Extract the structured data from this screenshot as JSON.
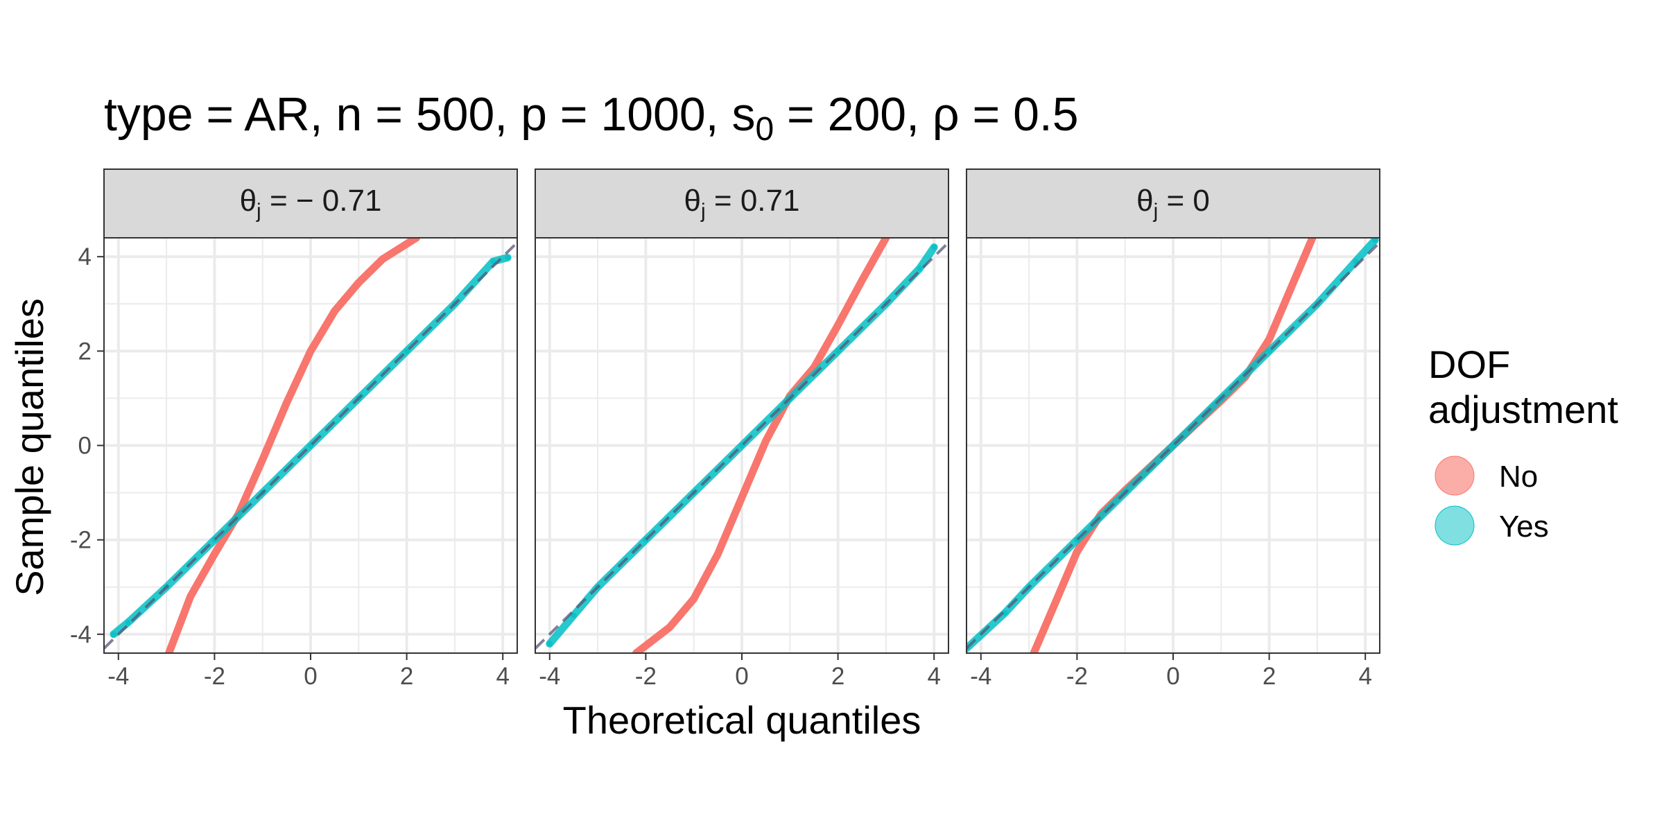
{
  "title": {
    "prefix": "type = AR, n = 500, p = 1000, s",
    "sub": "0",
    "suffix": " = 200, ρ = 0.5"
  },
  "colors": {
    "no": "#F8766D",
    "yes": "#00BFC4",
    "reference": "#555577",
    "strip": "#D9D9D9",
    "grid": "#EBEBEB"
  },
  "chart_data": {
    "type": "scatter",
    "xlabel": "Theoretical quantiles",
    "ylabel": "Sample quantiles",
    "xlim": [
      -4.3,
      4.3
    ],
    "ylim": [
      -4.4,
      4.4
    ],
    "xticks": [
      "-4",
      "-2",
      "0",
      "2",
      "4"
    ],
    "yticks": [
      "4",
      "2",
      "0",
      "-2",
      "-4"
    ],
    "legend": {
      "title_line1": "DOF",
      "title_line2": "adjustment",
      "position": "right",
      "entries": [
        "No",
        "Yes"
      ]
    },
    "reference_line": "y = x (dashed)",
    "panels": [
      {
        "label_theta": "θ",
        "label_sub": "j",
        "label_rest": " = − 0.71",
        "series": [
          {
            "name": "No",
            "points": [
              [
                -2.95,
                -4.4
              ],
              [
                -2.5,
                -3.2
              ],
              [
                -2.0,
                -2.3
              ],
              [
                -1.5,
                -1.45
              ],
              [
                -1.0,
                -0.3
              ],
              [
                -0.5,
                0.9
              ],
              [
                0.0,
                2.0
              ],
              [
                0.5,
                2.85
              ],
              [
                1.0,
                3.45
              ],
              [
                1.5,
                3.95
              ],
              [
                2.2,
                4.4
              ]
            ]
          },
          {
            "name": "Yes",
            "points": [
              [
                -4.1,
                -4.0
              ],
              [
                -3.8,
                -3.75
              ],
              [
                -3.0,
                -3.0
              ],
              [
                -2.0,
                -2.0
              ],
              [
                -1.0,
                -1.0
              ],
              [
                0.0,
                0.0
              ],
              [
                1.0,
                1.0
              ],
              [
                2.0,
                2.0
              ],
              [
                3.0,
                3.0
              ],
              [
                3.8,
                3.9
              ],
              [
                4.1,
                3.98
              ]
            ]
          }
        ]
      },
      {
        "label_theta": "θ",
        "label_sub": "j",
        "label_rest": " = 0.71",
        "series": [
          {
            "name": "No",
            "points": [
              [
                -2.2,
                -4.4
              ],
              [
                -1.5,
                -3.85
              ],
              [
                -1.0,
                -3.25
              ],
              [
                -0.5,
                -2.3
              ],
              [
                0.0,
                -1.1
              ],
              [
                0.5,
                0.1
              ],
              [
                1.0,
                1.05
              ],
              [
                1.5,
                1.65
              ],
              [
                2.0,
                2.55
              ],
              [
                2.5,
                3.5
              ],
              [
                3.0,
                4.4
              ]
            ]
          },
          {
            "name": "Yes",
            "points": [
              [
                -4.0,
                -4.2
              ],
              [
                -3.5,
                -3.6
              ],
              [
                -3.0,
                -3.0
              ],
              [
                -2.0,
                -2.0
              ],
              [
                -1.0,
                -1.0
              ],
              [
                0.0,
                0.0
              ],
              [
                1.0,
                1.0
              ],
              [
                2.0,
                2.0
              ],
              [
                3.0,
                3.0
              ],
              [
                3.7,
                3.75
              ],
              [
                4.0,
                4.2
              ]
            ]
          }
        ]
      },
      {
        "label_theta": "θ",
        "label_sub": "j",
        "label_rest": " = 0",
        "series": [
          {
            "name": "No",
            "points": [
              [
                -2.9,
                -4.4
              ],
              [
                -2.5,
                -3.45
              ],
              [
                -2.0,
                -2.25
              ],
              [
                -1.5,
                -1.45
              ],
              [
                -1.0,
                -0.95
              ],
              [
                0.0,
                0.0
              ],
              [
                1.0,
                0.95
              ],
              [
                1.5,
                1.45
              ],
              [
                2.0,
                2.25
              ],
              [
                2.5,
                3.45
              ],
              [
                2.9,
                4.4
              ]
            ]
          },
          {
            "name": "Yes",
            "points": [
              [
                -4.3,
                -4.3
              ],
              [
                -3.5,
                -3.55
              ],
              [
                -3.0,
                -3.0
              ],
              [
                -2.0,
                -2.0
              ],
              [
                -1.0,
                -1.0
              ],
              [
                0.0,
                0.0
              ],
              [
                1.0,
                1.0
              ],
              [
                2.0,
                2.0
              ],
              [
                3.0,
                3.0
              ],
              [
                3.8,
                3.9
              ],
              [
                4.2,
                4.35
              ]
            ]
          }
        ]
      }
    ]
  }
}
